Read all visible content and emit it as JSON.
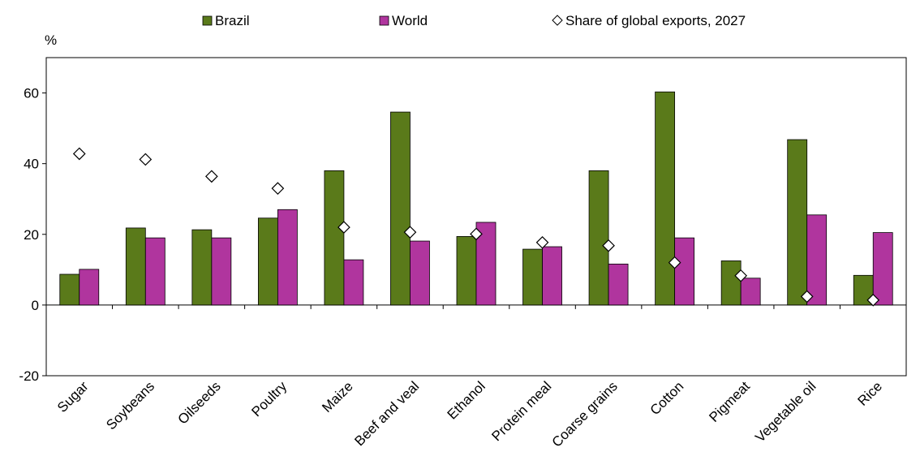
{
  "chart_data": {
    "type": "bar",
    "ylabel": "%",
    "ylim": [
      -20,
      70
    ],
    "yticks": [
      -20,
      0,
      20,
      40,
      60
    ],
    "grid": false,
    "legend_position": "top",
    "categories": [
      "Sugar",
      "Soybeans",
      "Oilseeds",
      "Poultry",
      "Maize",
      "Beef and veal",
      "Ethanol",
      "Protein meal",
      "Coarse grains",
      "Cotton",
      "Pigmeat",
      "Vegetable oil",
      "Rice"
    ],
    "series": [
      {
        "name": "Brazil",
        "kind": "bar",
        "color": "#5a7a1a",
        "values": [
          8.7,
          21.8,
          21.3,
          24.6,
          38.0,
          54.6,
          19.4,
          15.8,
          38.0,
          60.3,
          12.5,
          46.8,
          8.4
        ]
      },
      {
        "name": "World",
        "kind": "bar",
        "color": "#b0359e",
        "values": [
          10.1,
          19.0,
          19.0,
          27.0,
          12.8,
          18.1,
          23.4,
          16.5,
          11.6,
          19.0,
          7.6,
          25.5,
          20.5
        ]
      },
      {
        "name": "Share of global exports, 2027",
        "kind": "marker",
        "marker": "diamond",
        "color": "#ffffff",
        "values": [
          42.8,
          41.2,
          36.4,
          33.0,
          22.0,
          20.6,
          20.1,
          17.7,
          16.8,
          12.0,
          8.3,
          2.4,
          1.4
        ]
      }
    ]
  }
}
